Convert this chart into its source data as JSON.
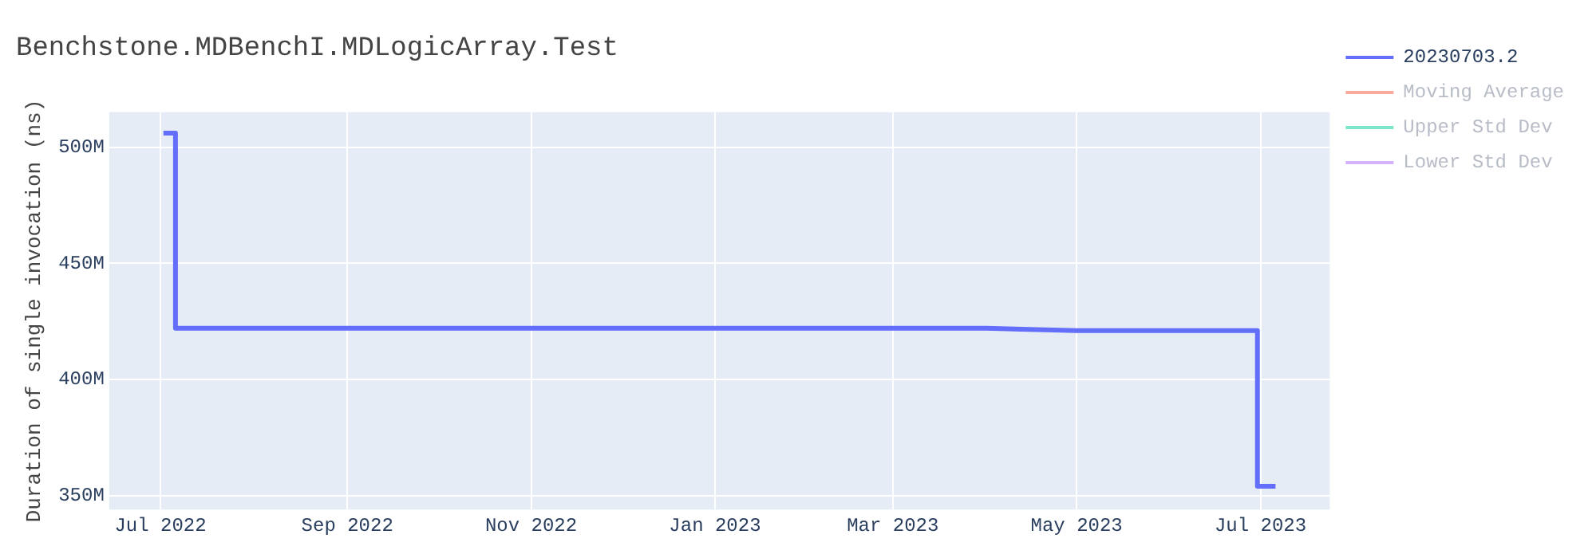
{
  "chart_data": {
    "type": "line",
    "title": "Benchstone.MDBenchI.MDLogicArray.Test",
    "ylabel": "Duration of single invocation (ns)",
    "xlim": [
      "2022-06-14",
      "2023-07-24"
    ],
    "xticks": [
      {
        "value": "2022-07-01",
        "label": "Jul 2022"
      },
      {
        "value": "2022-09-01",
        "label": "Sep 2022"
      },
      {
        "value": "2022-11-01",
        "label": "Nov 2022"
      },
      {
        "value": "2023-01-01",
        "label": "Jan 2023"
      },
      {
        "value": "2023-03-01",
        "label": "Mar 2023"
      },
      {
        "value": "2023-05-01",
        "label": "May 2023"
      },
      {
        "value": "2023-07-01",
        "label": "Jul 2023"
      }
    ],
    "ylim": [
      344000000,
      515000000
    ],
    "yticks": [
      {
        "value": 350000000,
        "label": "350M"
      },
      {
        "value": 400000000,
        "label": "400M"
      },
      {
        "value": 450000000,
        "label": "450M"
      },
      {
        "value": 500000000,
        "label": "500M"
      }
    ],
    "grid": true,
    "legend": "top right",
    "marker": "none",
    "line_style": "solid",
    "series": [
      {
        "name": "20230703.2",
        "color": "#636efa",
        "x": [
          "2022-07-02",
          "2022-07-04",
          "2022-07-06",
          "2022-07-06",
          "2022-07-20",
          "2022-08-10",
          "2022-09-01",
          "2022-10-01",
          "2022-11-01",
          "2022-12-01",
          "2023-01-01",
          "2023-02-01",
          "2023-03-01",
          "2023-04-01",
          "2023-05-01",
          "2023-06-01",
          "2023-06-30",
          "2023-06-30",
          "2023-07-03",
          "2023-07-06"
        ],
        "values": [
          506000000,
          506000000,
          506000000,
          422000000,
          422000000,
          422000000,
          422000000,
          422000000,
          422000000,
          422000000,
          422000000,
          422000000,
          422000000,
          422000000,
          421000000,
          421000000,
          421000000,
          354000000,
          354000000,
          354000000
        ]
      },
      {
        "name": "Moving Average",
        "color": "#ef553b"
      },
      {
        "name": "Upper Std Dev",
        "color": "#00cc96"
      },
      {
        "name": "Lower Std Dev",
        "color": "#ab63fa"
      }
    ]
  }
}
